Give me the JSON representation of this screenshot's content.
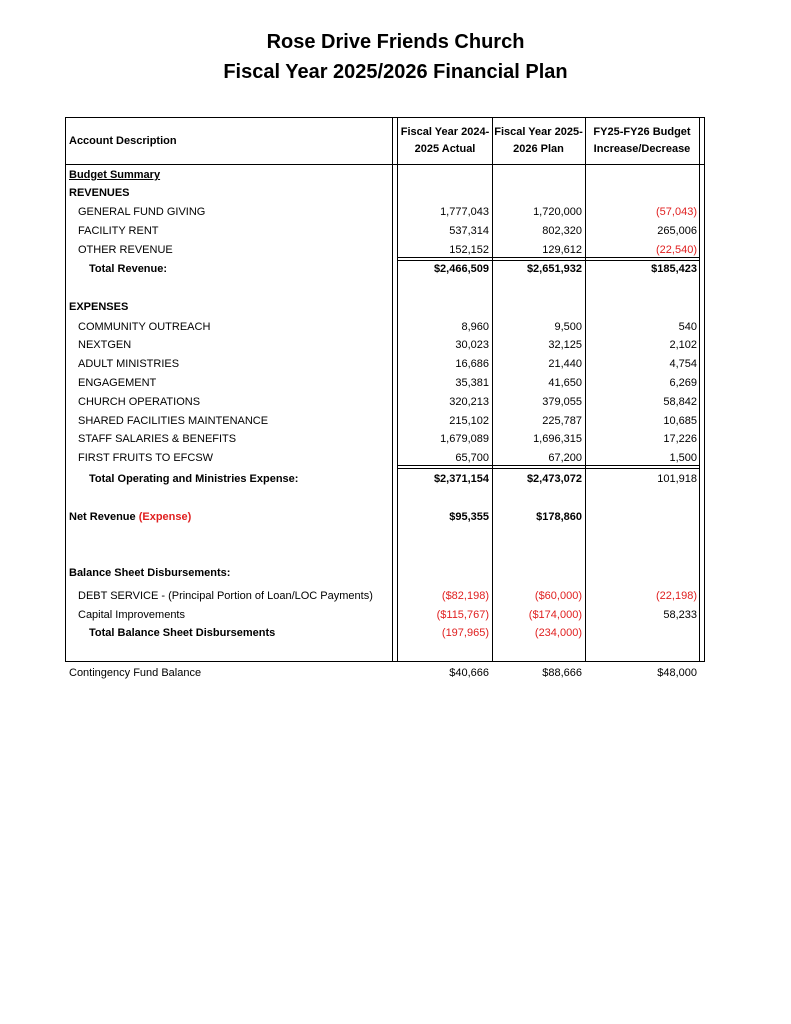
{
  "title": [
    "Rose Drive Friends Church",
    "Fiscal Year 2025/2026 Financial Plan"
  ],
  "headers": {
    "description": "Account Description",
    "col1": [
      "Fiscal Year 2024-",
      "2025 Actual"
    ],
    "col2": [
      "Fiscal Year 2025-",
      "2026 Plan"
    ],
    "col3": [
      "FY25-FY26 Budget",
      "Increase/Decrease"
    ]
  },
  "rows": [
    {
      "label": "Budget Summary",
      "bold": true,
      "underline": true,
      "indent": 0,
      "values": []
    },
    {
      "label": "REVENUES",
      "bold": true,
      "indent": 0,
      "values": []
    },
    {
      "label": "GENERAL FUND GIVING",
      "indent": 1,
      "values": [
        {
          "v": "1,777,043"
        },
        {
          "v": "1,720,000"
        },
        {
          "v": "(57,043)",
          "red": true
        }
      ]
    },
    {
      "label": "FACILITY RENT",
      "indent": 1,
      "values": [
        {
          "v": "537,314"
        },
        {
          "v": "802,320"
        },
        {
          "v": "265,006"
        }
      ]
    },
    {
      "label": "OTHER REVENUE",
      "indent": 1,
      "values": [
        {
          "v": "152,152"
        },
        {
          "v": "129,612"
        },
        {
          "v": "(22,540)",
          "red": true
        }
      ]
    },
    {
      "label": "Total Revenue:",
      "bold": true,
      "indent": 2,
      "values": [
        {
          "v": "$2,466,509",
          "bold": true
        },
        {
          "v": "$2,651,932",
          "bold": true
        },
        {
          "v": "$185,423",
          "bold": true
        }
      ]
    },
    {
      "label": "EXPENSES",
      "bold": true,
      "indent": 0,
      "values": []
    },
    {
      "label": "COMMUNITY OUTREACH",
      "indent": 1,
      "values": [
        {
          "v": "8,960"
        },
        {
          "v": "9,500"
        },
        {
          "v": "540"
        }
      ]
    },
    {
      "label": "NEXTGEN",
      "indent": 1,
      "values": [
        {
          "v": "30,023"
        },
        {
          "v": "32,125"
        },
        {
          "v": "2,102"
        }
      ]
    },
    {
      "label": "ADULT MINISTRIES",
      "indent": 1,
      "values": [
        {
          "v": "16,686"
        },
        {
          "v": "21,440"
        },
        {
          "v": "4,754"
        }
      ]
    },
    {
      "label": "ENGAGEMENT",
      "indent": 1,
      "values": [
        {
          "v": "35,381"
        },
        {
          "v": "41,650"
        },
        {
          "v": "6,269"
        }
      ]
    },
    {
      "label": "CHURCH OPERATIONS",
      "indent": 1,
      "values": [
        {
          "v": "320,213"
        },
        {
          "v": "379,055"
        },
        {
          "v": "58,842"
        }
      ]
    },
    {
      "label": "SHARED FACILITIES MAINTENANCE",
      "indent": 1,
      "values": [
        {
          "v": "215,102"
        },
        {
          "v": "225,787"
        },
        {
          "v": "10,685"
        }
      ]
    },
    {
      "label": "STAFF SALARIES & BENEFITS",
      "indent": 1,
      "values": [
        {
          "v": "1,679,089"
        },
        {
          "v": "1,696,315"
        },
        {
          "v": "17,226"
        }
      ]
    },
    {
      "label": "FIRST FRUITS TO EFCSW",
      "indent": 1,
      "values": [
        {
          "v": "65,700"
        },
        {
          "v": "67,200"
        },
        {
          "v": "1,500"
        }
      ]
    },
    {
      "label": "Total Operating and Ministries Expense:",
      "bold": true,
      "indent": 2,
      "values": [
        {
          "v": "$2,371,154",
          "bold": true
        },
        {
          "v": "$2,473,072",
          "bold": true
        },
        {
          "v": "101,918"
        }
      ]
    },
    {
      "label": "Net Revenue",
      "label_suffix": "(Expense)",
      "bold": true,
      "indent": 0,
      "values": [
        {
          "v": "$95,355",
          "bold": true
        },
        {
          "v": "$178,860",
          "bold": true
        }
      ]
    },
    {
      "label": "Balance Sheet Disbursements:",
      "bold": true,
      "indent": 0,
      "values": []
    },
    {
      "label": "DEBT SERVICE - (Principal Portion of Loan/LOC Payments)",
      "indent": 1,
      "values": [
        {
          "v": "($82,198)",
          "red": true
        },
        {
          "v": "($60,000)",
          "red": true
        },
        {
          "v": "(22,198)",
          "red": true
        }
      ]
    },
    {
      "label": "Capital Improvements",
      "indent": 1,
      "values": [
        {
          "v": "($115,767)",
          "red": true
        },
        {
          "v": "($174,000)",
          "red": true
        },
        {
          "v": "58,233"
        }
      ]
    },
    {
      "label": "Total Balance Sheet Disbursements",
      "bold": true,
      "indent": 2,
      "values": [
        {
          "v": "(197,965)",
          "red": true
        },
        {
          "v": "(234,000)",
          "red": true
        }
      ]
    }
  ],
  "footer": {
    "label": "Contingency Fund Balance",
    "values": [
      "$40,666",
      "$88,666",
      "$48,000"
    ]
  }
}
